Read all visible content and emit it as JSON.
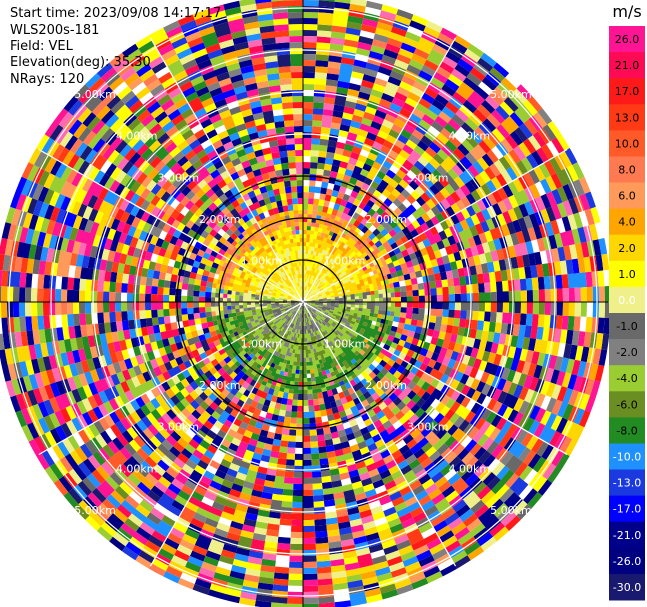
{
  "header": {
    "start_time": "Start time: 2023/09/08 14:17:17",
    "instrument": "WLS200s-181",
    "field": "Field: VEL",
    "elevation": "Elevation(deg): 35.30",
    "nrays": "NRays: 120"
  },
  "chart_data": {
    "type": "heatmap",
    "subtype": "polar_ppi",
    "field": "VEL",
    "units": "m/s",
    "elevation_deg": 35.3,
    "nrays": 120,
    "range_ring_labels": [
      "1.00km",
      "2.00km",
      "3.00km",
      "4.00km",
      "5.00km"
    ],
    "colorbar": {
      "title": "m/s",
      "ticks": [
        "26.0",
        "21.0",
        "17.0",
        "13.0",
        "10.0",
        "8.0",
        "6.0",
        "4.0",
        "2.0",
        "1.0",
        "0.0",
        "-1.0",
        "-2.0",
        "-4.0",
        "-6.0",
        "-8.0",
        "-10.0",
        "-13.0",
        "-17.0",
        "-21.0",
        "-26.0",
        "-30.0"
      ],
      "colors": [
        "#ff1493",
        "#ff0a55",
        "#ff1a1a",
        "#ff3a14",
        "#ff5a28",
        "#ff7a50",
        "#ff9a5a",
        "#ffa500",
        "#ffd700",
        "#ffff00",
        "#f0f08a",
        "#696969",
        "#808080",
        "#9acd32",
        "#6b8e23",
        "#228b22",
        "#1e90ff",
        "#1a3adf",
        "#0000ff",
        "#00008b",
        "#000080",
        "#191970"
      ]
    },
    "velocity_pattern": {
      "1.00km": "northern half positive (yellow/gold 1-4 m/s), southern half near zero to slightly negative (grey/olive -1 to -2 m/s)",
      "2.00km": "north positive (yellow/orange 2-6 m/s), south negative (green -4 to -6 m/s)",
      "beyond 2.00km": "noise / random colors"
    }
  }
}
